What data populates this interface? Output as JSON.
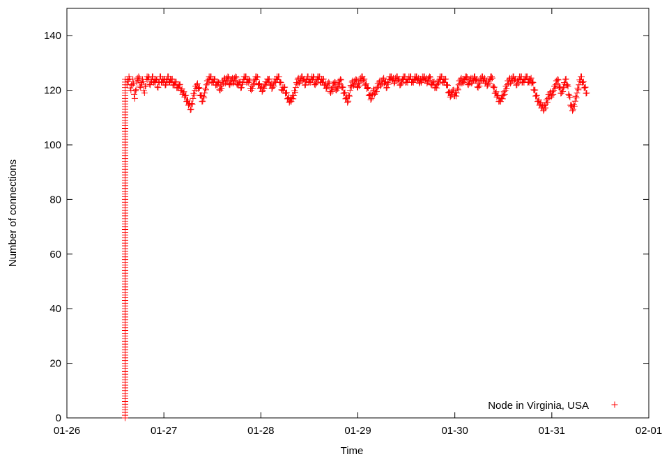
{
  "chart_data": {
    "type": "scatter",
    "title": "",
    "xlabel": "Time",
    "ylabel": "Number of connections",
    "x_tick_labels": [
      "01-26",
      "01-27",
      "01-28",
      "01-29",
      "01-30",
      "01-31",
      "02-01"
    ],
    "x_range_days": [
      0,
      6
    ],
    "ylim": [
      0,
      150
    ],
    "y_ticks": [
      0,
      20,
      40,
      60,
      80,
      100,
      120,
      140
    ],
    "grid": false,
    "legend_position": "bottom-right",
    "marker": "plus",
    "series": [
      {
        "name": "Node in Virginia, USA",
        "color": "#ff0000",
        "ramp": {
          "x": 0.6,
          "from": 0,
          "to": 124
        },
        "points": [
          [
            0.62,
            122
          ],
          [
            0.64,
            125
          ],
          [
            0.66,
            120
          ],
          [
            0.68,
            124
          ],
          [
            0.7,
            117
          ],
          [
            0.72,
            123
          ],
          [
            0.74,
            125
          ],
          [
            0.76,
            121
          ],
          [
            0.78,
            124
          ],
          [
            0.8,
            119
          ],
          [
            0.82,
            124
          ],
          [
            0.84,
            125
          ],
          [
            0.86,
            122
          ],
          [
            0.88,
            125
          ],
          [
            0.9,
            123
          ],
          [
            0.92,
            124
          ],
          [
            0.94,
            121
          ],
          [
            0.96,
            125
          ],
          [
            0.98,
            123
          ],
          [
            1.0,
            124
          ],
          [
            1.02,
            122
          ],
          [
            1.04,
            125
          ],
          [
            1.06,
            123
          ],
          [
            1.08,
            124
          ],
          [
            1.1,
            122
          ],
          [
            1.12,
            123
          ],
          [
            1.14,
            121
          ],
          [
            1.16,
            122
          ],
          [
            1.18,
            120
          ],
          [
            1.2,
            119
          ],
          [
            1.22,
            118
          ],
          [
            1.24,
            116
          ],
          [
            1.26,
            115
          ],
          [
            1.28,
            113
          ],
          [
            1.3,
            117
          ],
          [
            1.32,
            120
          ],
          [
            1.34,
            122
          ],
          [
            1.36,
            121
          ],
          [
            1.38,
            118
          ],
          [
            1.4,
            116
          ],
          [
            1.42,
            119
          ],
          [
            1.44,
            122
          ],
          [
            1.46,
            124
          ],
          [
            1.48,
            125
          ],
          [
            1.5,
            123
          ],
          [
            1.52,
            124
          ],
          [
            1.54,
            122
          ],
          [
            1.56,
            123
          ],
          [
            1.58,
            120
          ],
          [
            1.6,
            122
          ],
          [
            1.62,
            124
          ],
          [
            1.64,
            123
          ],
          [
            1.66,
            125
          ],
          [
            1.68,
            122
          ],
          [
            1.7,
            124
          ],
          [
            1.72,
            123
          ],
          [
            1.74,
            125
          ],
          [
            1.76,
            122
          ],
          [
            1.78,
            123
          ],
          [
            1.8,
            121
          ],
          [
            1.82,
            124
          ],
          [
            1.84,
            125
          ],
          [
            1.86,
            123
          ],
          [
            1.88,
            124
          ],
          [
            1.9,
            120
          ],
          [
            1.92,
            122
          ],
          [
            1.94,
            124
          ],
          [
            1.96,
            125
          ],
          [
            1.98,
            122
          ],
          [
            2.0,
            121
          ],
          [
            2.02,
            120
          ],
          [
            2.04,
            122
          ],
          [
            2.06,
            123
          ],
          [
            2.08,
            124
          ],
          [
            2.1,
            122
          ],
          [
            2.12,
            121
          ],
          [
            2.14,
            123
          ],
          [
            2.16,
            124
          ],
          [
            2.18,
            125
          ],
          [
            2.2,
            123
          ],
          [
            2.22,
            120
          ],
          [
            2.24,
            121
          ],
          [
            2.26,
            119
          ],
          [
            2.28,
            117
          ],
          [
            2.3,
            116
          ],
          [
            2.32,
            117
          ],
          [
            2.34,
            118
          ],
          [
            2.36,
            121
          ],
          [
            2.38,
            124
          ],
          [
            2.4,
            123
          ],
          [
            2.42,
            125
          ],
          [
            2.44,
            124
          ],
          [
            2.46,
            122
          ],
          [
            2.48,
            125
          ],
          [
            2.5,
            123
          ],
          [
            2.52,
            124
          ],
          [
            2.54,
            125
          ],
          [
            2.56,
            122
          ],
          [
            2.58,
            124
          ],
          [
            2.6,
            125
          ],
          [
            2.62,
            123
          ],
          [
            2.64,
            124
          ],
          [
            2.66,
            122
          ],
          [
            2.68,
            121
          ],
          [
            2.7,
            123
          ],
          [
            2.72,
            119
          ],
          [
            2.74,
            121
          ],
          [
            2.76,
            123
          ],
          [
            2.78,
            120
          ],
          [
            2.8,
            122
          ],
          [
            2.82,
            124
          ],
          [
            2.84,
            121
          ],
          [
            2.86,
            119
          ],
          [
            2.88,
            117
          ],
          [
            2.9,
            116
          ],
          [
            2.92,
            120
          ],
          [
            2.94,
            123
          ],
          [
            2.96,
            122
          ],
          [
            2.98,
            124
          ],
          [
            3.0,
            121
          ],
          [
            3.02,
            123
          ],
          [
            3.04,
            125
          ],
          [
            3.06,
            124
          ],
          [
            3.08,
            122
          ],
          [
            3.1,
            121
          ],
          [
            3.12,
            118
          ],
          [
            3.14,
            117
          ],
          [
            3.16,
            120
          ],
          [
            3.18,
            119
          ],
          [
            3.2,
            121
          ],
          [
            3.22,
            123
          ],
          [
            3.24,
            122
          ],
          [
            3.26,
            124
          ],
          [
            3.28,
            123
          ],
          [
            3.3,
            121
          ],
          [
            3.32,
            124
          ],
          [
            3.34,
            125
          ],
          [
            3.36,
            124
          ],
          [
            3.38,
            123
          ],
          [
            3.4,
            125
          ],
          [
            3.42,
            124
          ],
          [
            3.44,
            122
          ],
          [
            3.46,
            124
          ],
          [
            3.48,
            125
          ],
          [
            3.5,
            123
          ],
          [
            3.52,
            124
          ],
          [
            3.54,
            125
          ],
          [
            3.56,
            123
          ],
          [
            3.58,
            124
          ],
          [
            3.6,
            125
          ],
          [
            3.62,
            124
          ],
          [
            3.64,
            123
          ],
          [
            3.66,
            124
          ],
          [
            3.68,
            125
          ],
          [
            3.7,
            124
          ],
          [
            3.72,
            123
          ],
          [
            3.74,
            125
          ],
          [
            3.76,
            122
          ],
          [
            3.78,
            123
          ],
          [
            3.8,
            121
          ],
          [
            3.82,
            122
          ],
          [
            3.84,
            124
          ],
          [
            3.86,
            125
          ],
          [
            3.88,
            123
          ],
          [
            3.9,
            124
          ],
          [
            3.92,
            122
          ],
          [
            3.94,
            119
          ],
          [
            3.96,
            118
          ],
          [
            3.98,
            120
          ],
          [
            4.0,
            118
          ],
          [
            4.02,
            119
          ],
          [
            4.04,
            122
          ],
          [
            4.06,
            124
          ],
          [
            4.08,
            123
          ],
          [
            4.1,
            124
          ],
          [
            4.12,
            125
          ],
          [
            4.14,
            122
          ],
          [
            4.16,
            124
          ],
          [
            4.18,
            123
          ],
          [
            4.2,
            125
          ],
          [
            4.22,
            124
          ],
          [
            4.24,
            121
          ],
          [
            4.26,
            123
          ],
          [
            4.28,
            125
          ],
          [
            4.3,
            124
          ],
          [
            4.32,
            123
          ],
          [
            4.34,
            122
          ],
          [
            4.36,
            124
          ],
          [
            4.38,
            125
          ],
          [
            4.4,
            121
          ],
          [
            4.42,
            119
          ],
          [
            4.44,
            118
          ],
          [
            4.46,
            116
          ],
          [
            4.48,
            117
          ],
          [
            4.5,
            118
          ],
          [
            4.52,
            120
          ],
          [
            4.54,
            122
          ],
          [
            4.56,
            124
          ],
          [
            4.58,
            123
          ],
          [
            4.6,
            125
          ],
          [
            4.62,
            124
          ],
          [
            4.64,
            122
          ],
          [
            4.66,
            124
          ],
          [
            4.68,
            125
          ],
          [
            4.7,
            123
          ],
          [
            4.72,
            124
          ],
          [
            4.74,
            125
          ],
          [
            4.76,
            123
          ],
          [
            4.78,
            124
          ],
          [
            4.8,
            123
          ],
          [
            4.82,
            120
          ],
          [
            4.84,
            118
          ],
          [
            4.86,
            116
          ],
          [
            4.88,
            115
          ],
          [
            4.9,
            114
          ],
          [
            4.92,
            113
          ],
          [
            4.94,
            115
          ],
          [
            4.96,
            117
          ],
          [
            4.98,
            119
          ],
          [
            5.0,
            118
          ],
          [
            5.02,
            120
          ],
          [
            5.04,
            122
          ],
          [
            5.06,
            124
          ],
          [
            5.08,
            121
          ],
          [
            5.1,
            119
          ],
          [
            5.12,
            121
          ],
          [
            5.14,
            124
          ],
          [
            5.16,
            122
          ],
          [
            5.18,
            118
          ],
          [
            5.2,
            114
          ],
          [
            5.22,
            113
          ],
          [
            5.24,
            116
          ],
          [
            5.26,
            119
          ],
          [
            5.28,
            122
          ],
          [
            5.3,
            125
          ],
          [
            5.32,
            123
          ],
          [
            5.34,
            121
          ],
          [
            5.36,
            119
          ]
        ]
      }
    ]
  }
}
